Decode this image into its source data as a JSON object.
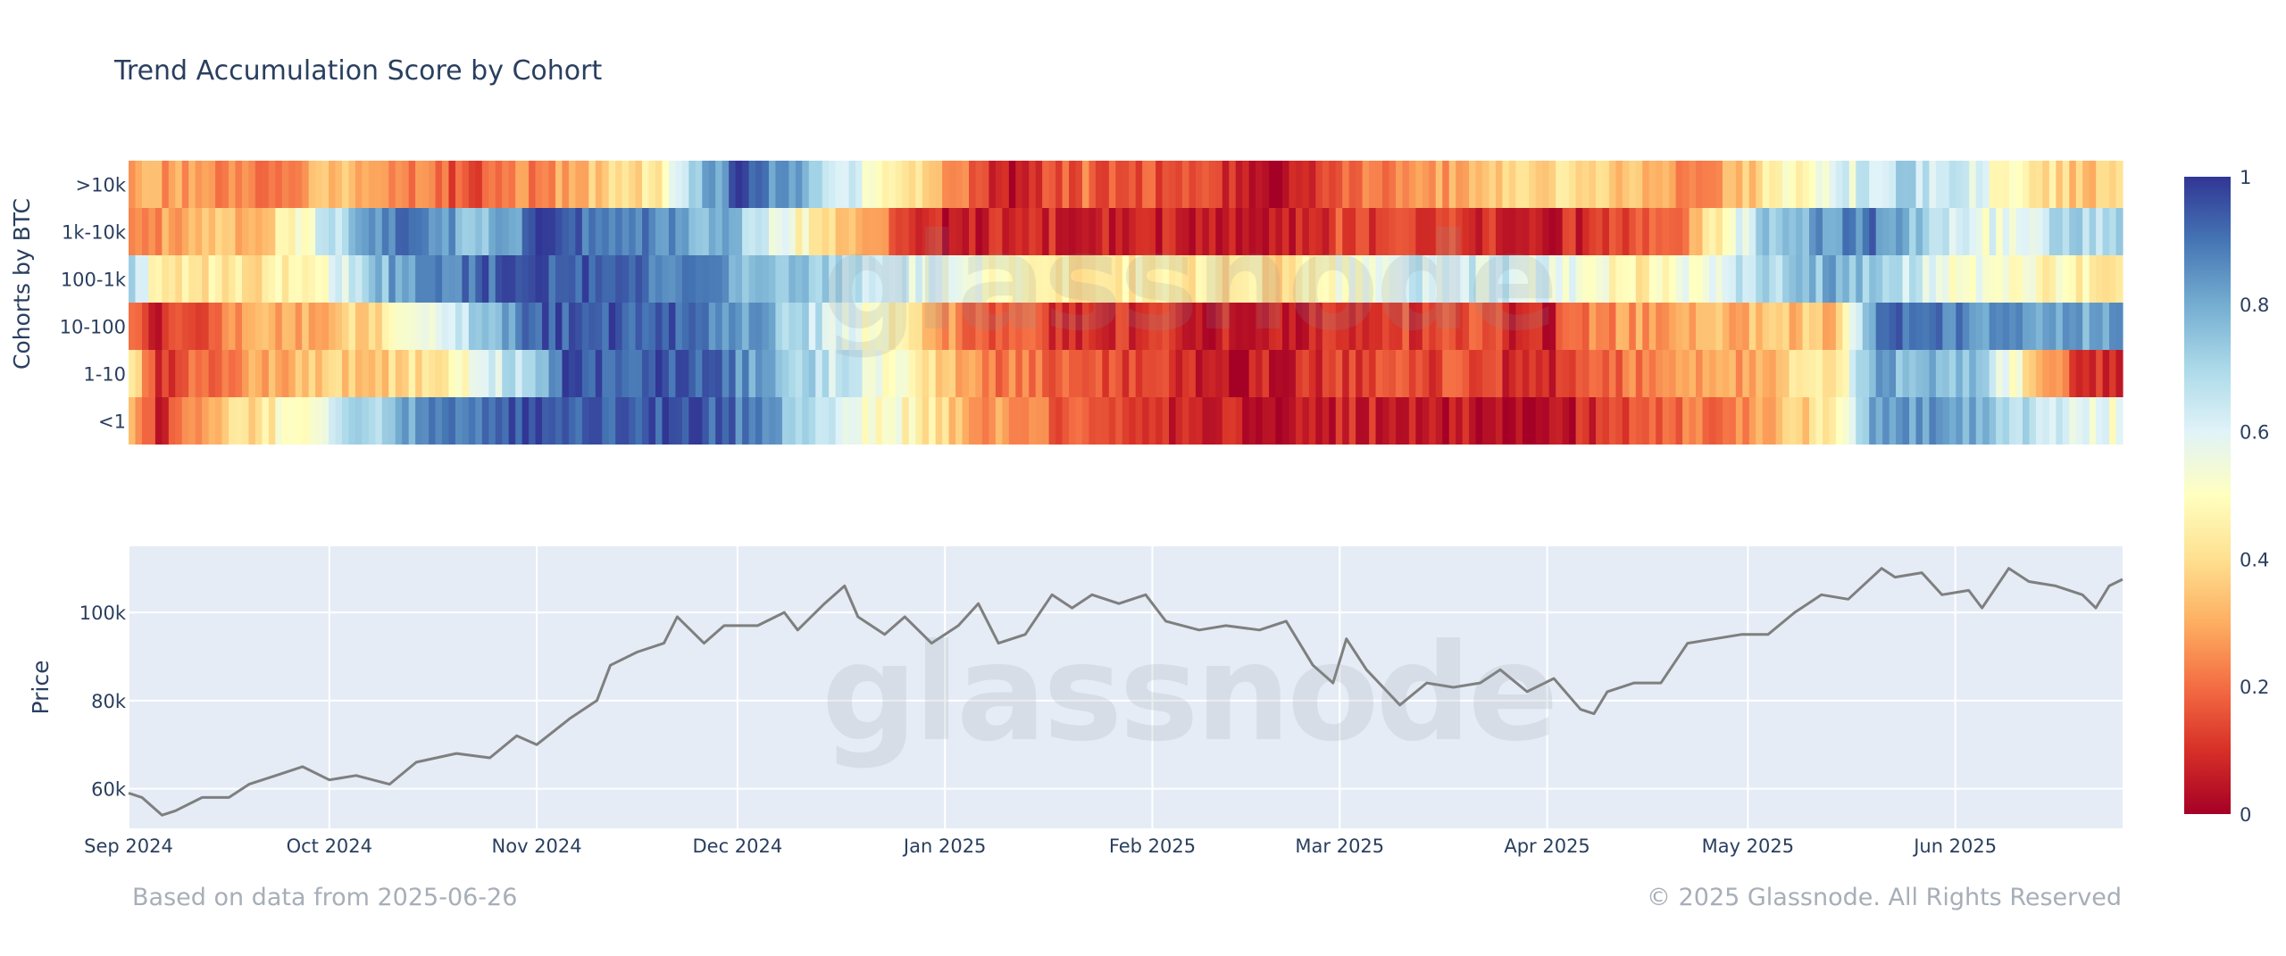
{
  "chart_data": [
    {
      "type": "heatmap",
      "title": "Trend Accumulation Score by Cohort",
      "ylabel": "Cohorts by BTC",
      "rows": [
        ">10k",
        "1k-10k",
        "100-1k",
        "10-100",
        "1-10",
        "<1"
      ],
      "x_range": [
        "2024-09-01",
        "2025-06-26"
      ],
      "colorscale": {
        "min": 0,
        "max": 1,
        "ticks": [
          "0",
          "0.2",
          "0.4",
          "0.6",
          "0.8",
          "1"
        ],
        "colors": [
          "#a50026",
          "#d73027",
          "#f46d43",
          "#fdae61",
          "#fee090",
          "#ffffbf",
          "#e0f3f8",
          "#abd9e9",
          "#74add1",
          "#4575b4",
          "#313695"
        ]
      },
      "segments": [
        {
          "row": ">10k",
          "values": [
            [
              "2024-09-01",
              0.3
            ],
            [
              "2024-09-20",
              0.2
            ],
            [
              "2024-10-01",
              0.35
            ],
            [
              "2024-10-20",
              0.15
            ],
            [
              "2024-11-01",
              0.25
            ],
            [
              "2024-11-20",
              0.45
            ],
            [
              "2024-11-25",
              0.75
            ],
            [
              "2024-12-01",
              0.95
            ],
            [
              "2024-12-17",
              0.65
            ],
            [
              "2024-12-29",
              0.35
            ],
            [
              "2025-01-10",
              0.05
            ],
            [
              "2025-01-21",
              0.2
            ],
            [
              "2025-02-10",
              0.12
            ],
            [
              "2025-02-20",
              0.02
            ],
            [
              "2025-03-01",
              0.2
            ],
            [
              "2025-03-20",
              0.3
            ],
            [
              "2025-04-01",
              0.4
            ],
            [
              "2025-04-15",
              0.35
            ],
            [
              "2025-04-25",
              0.2
            ],
            [
              "2025-05-05",
              0.45
            ],
            [
              "2025-05-25",
              0.7
            ],
            [
              "2025-06-10",
              0.5
            ],
            [
              "2025-06-20",
              0.35
            ]
          ]
        },
        {
          "row": "1k-10k",
          "values": [
            [
              "2024-09-01",
              0.25
            ],
            [
              "2024-09-20",
              0.35
            ],
            [
              "2024-10-01",
              0.65
            ],
            [
              "2024-10-10",
              0.9
            ],
            [
              "2024-10-25",
              0.75
            ],
            [
              "2024-11-01",
              0.95
            ],
            [
              "2024-11-20",
              0.85
            ],
            [
              "2024-12-01",
              0.75
            ],
            [
              "2024-12-10",
              0.5
            ],
            [
              "2024-12-20",
              0.3
            ],
            [
              "2025-01-01",
              0.05
            ],
            [
              "2025-01-15",
              0.1
            ],
            [
              "2025-02-01",
              0.08
            ],
            [
              "2025-02-20",
              0.02
            ],
            [
              "2025-03-01",
              0.15
            ],
            [
              "2025-03-20",
              0.1
            ],
            [
              "2025-04-01",
              0.05
            ],
            [
              "2025-04-20",
              0.2
            ],
            [
              "2025-04-28",
              0.5
            ],
            [
              "2025-05-05",
              0.75
            ],
            [
              "2025-05-20",
              0.9
            ],
            [
              "2025-06-05",
              0.55
            ],
            [
              "2025-06-20",
              0.7
            ]
          ]
        },
        {
          "row": "100-1k",
          "values": [
            [
              "2024-09-01",
              0.7
            ],
            [
              "2024-09-05",
              0.45
            ],
            [
              "2024-09-20",
              0.4
            ],
            [
              "2024-10-01",
              0.55
            ],
            [
              "2024-10-10",
              0.8
            ],
            [
              "2024-10-20",
              0.9
            ],
            [
              "2024-11-01",
              0.95
            ],
            [
              "2024-11-20",
              0.9
            ],
            [
              "2024-12-01",
              0.8
            ],
            [
              "2024-12-15",
              0.7
            ],
            [
              "2025-01-01",
              0.55
            ],
            [
              "2025-01-15",
              0.45
            ],
            [
              "2025-02-01",
              0.45
            ],
            [
              "2025-02-20",
              0.4
            ],
            [
              "2025-03-01",
              0.5
            ],
            [
              "2025-03-15",
              0.65
            ],
            [
              "2025-04-01",
              0.6
            ],
            [
              "2025-04-15",
              0.45
            ],
            [
              "2025-05-01",
              0.65
            ],
            [
              "2025-05-15",
              0.8
            ],
            [
              "2025-06-01",
              0.55
            ],
            [
              "2025-06-20",
              0.45
            ]
          ]
        },
        {
          "row": "10-100",
          "values": [
            [
              "2024-09-01",
              0.2
            ],
            [
              "2024-09-05",
              0.05
            ],
            [
              "2024-09-15",
              0.25
            ],
            [
              "2024-10-01",
              0.35
            ],
            [
              "2024-10-15",
              0.5
            ],
            [
              "2024-10-25",
              0.75
            ],
            [
              "2024-11-01",
              0.95
            ],
            [
              "2024-11-20",
              0.95
            ],
            [
              "2024-12-01",
              0.85
            ],
            [
              "2024-12-10",
              0.7
            ],
            [
              "2024-12-22",
              0.5
            ],
            [
              "2025-01-05",
              0.2
            ],
            [
              "2025-01-20",
              0.1
            ],
            [
              "2025-02-01",
              0.1
            ],
            [
              "2025-02-15",
              0.05
            ],
            [
              "2025-03-01",
              0.1
            ],
            [
              "2025-03-20",
              0.15
            ],
            [
              "2025-04-01",
              0.05
            ],
            [
              "2025-04-08",
              0.25
            ],
            [
              "2025-04-20",
              0.3
            ],
            [
              "2025-05-15",
              0.35
            ],
            [
              "2025-05-22",
              0.95
            ],
            [
              "2025-06-05",
              0.85
            ],
            [
              "2025-06-20",
              0.8
            ]
          ]
        },
        {
          "row": "1-10",
          "values": [
            [
              "2024-09-01",
              0.45
            ],
            [
              "2024-09-05",
              0.1
            ],
            [
              "2024-09-20",
              0.3
            ],
            [
              "2024-10-01",
              0.35
            ],
            [
              "2024-10-15",
              0.4
            ],
            [
              "2024-11-01",
              0.75
            ],
            [
              "2024-11-05",
              0.95
            ],
            [
              "2024-11-25",
              0.95
            ],
            [
              "2024-12-01",
              0.85
            ],
            [
              "2024-12-15",
              0.65
            ],
            [
              "2024-12-25",
              0.5
            ],
            [
              "2025-01-05",
              0.25
            ],
            [
              "2025-01-20",
              0.15
            ],
            [
              "2025-02-01",
              0.1
            ],
            [
              "2025-02-15",
              0.05
            ],
            [
              "2025-03-01",
              0.12
            ],
            [
              "2025-03-20",
              0.15
            ],
            [
              "2025-04-01",
              0.05
            ],
            [
              "2025-04-10",
              0.2
            ],
            [
              "2025-05-01",
              0.3
            ],
            [
              "2025-05-15",
              0.45
            ],
            [
              "2025-05-20",
              0.8
            ],
            [
              "2025-06-05",
              0.75
            ],
            [
              "2025-06-20",
              0.1
            ]
          ]
        },
        {
          "row": "<1",
          "values": [
            [
              "2024-09-01",
              0.3
            ],
            [
              "2024-09-05",
              0.1
            ],
            [
              "2024-09-15",
              0.35
            ],
            [
              "2024-10-01",
              0.6
            ],
            [
              "2024-10-15",
              0.85
            ],
            [
              "2024-11-01",
              0.95
            ],
            [
              "2024-11-25",
              0.95
            ],
            [
              "2024-12-05",
              0.85
            ],
            [
              "2024-12-15",
              0.6
            ],
            [
              "2024-12-25",
              0.5
            ],
            [
              "2025-01-05",
              0.3
            ],
            [
              "2025-01-20",
              0.15
            ],
            [
              "2025-02-01",
              0.1
            ],
            [
              "2025-02-15",
              0.05
            ],
            [
              "2025-03-01",
              0.08
            ],
            [
              "2025-03-20",
              0.05
            ],
            [
              "2025-04-01",
              0.02
            ],
            [
              "2025-04-15",
              0.15
            ],
            [
              "2025-05-01",
              0.25
            ],
            [
              "2025-05-15",
              0.45
            ],
            [
              "2025-05-20",
              0.85
            ],
            [
              "2025-06-05",
              0.8
            ],
            [
              "2025-06-20",
              0.55
            ]
          ]
        }
      ]
    },
    {
      "type": "line",
      "ylabel": "Price",
      "yticks": [
        "60k",
        "80k",
        "100k"
      ],
      "ytick_values": [
        60000,
        80000,
        100000
      ],
      "ylim": [
        51000,
        115000
      ],
      "xticks": [
        "Sep 2024",
        "Oct 2024",
        "Nov 2024",
        "Dec 2024",
        "Jan 2025",
        "Feb 2025",
        "Mar 2025",
        "Apr 2025",
        "May 2025",
        "Jun 2025"
      ],
      "xtick_dates": [
        "2024-09-01",
        "2024-10-01",
        "2024-11-01",
        "2024-12-01",
        "2025-01-01",
        "2025-02-01",
        "2025-03-01",
        "2025-04-01",
        "2025-05-01",
        "2025-06-01"
      ],
      "series": [
        {
          "color": "#7f7f7f",
          "points": [
            [
              "2024-09-01",
              59000
            ],
            [
              "2024-09-03",
              58000
            ],
            [
              "2024-09-06",
              54000
            ],
            [
              "2024-09-08",
              55000
            ],
            [
              "2024-09-12",
              58000
            ],
            [
              "2024-09-16",
              58000
            ],
            [
              "2024-09-19",
              61000
            ],
            [
              "2024-09-23",
              63000
            ],
            [
              "2024-09-27",
              65000
            ],
            [
              "2024-10-01",
              62000
            ],
            [
              "2024-10-05",
              63000
            ],
            [
              "2024-10-10",
              61000
            ],
            [
              "2024-10-14",
              66000
            ],
            [
              "2024-10-20",
              68000
            ],
            [
              "2024-10-25",
              67000
            ],
            [
              "2024-10-29",
              72000
            ],
            [
              "2024-11-01",
              70000
            ],
            [
              "2024-11-06",
              76000
            ],
            [
              "2024-11-10",
              80000
            ],
            [
              "2024-11-12",
              88000
            ],
            [
              "2024-11-16",
              91000
            ],
            [
              "2024-11-20",
              93000
            ],
            [
              "2024-11-22",
              99000
            ],
            [
              "2024-11-26",
              93000
            ],
            [
              "2024-11-29",
              97000
            ],
            [
              "2024-12-04",
              97000
            ],
            [
              "2024-12-08",
              100000
            ],
            [
              "2024-12-10",
              96000
            ],
            [
              "2024-12-14",
              102000
            ],
            [
              "2024-12-17",
              106000
            ],
            [
              "2024-12-19",
              99000
            ],
            [
              "2024-12-23",
              95000
            ],
            [
              "2024-12-26",
              99000
            ],
            [
              "2024-12-30",
              93000
            ],
            [
              "2025-01-03",
              97000
            ],
            [
              "2025-01-06",
              102000
            ],
            [
              "2025-01-09",
              93000
            ],
            [
              "2025-01-13",
              95000
            ],
            [
              "2025-01-17",
              104000
            ],
            [
              "2025-01-20",
              101000
            ],
            [
              "2025-01-23",
              104000
            ],
            [
              "2025-01-27",
              102000
            ],
            [
              "2025-01-31",
              104000
            ],
            [
              "2025-02-03",
              98000
            ],
            [
              "2025-02-08",
              96000
            ],
            [
              "2025-02-12",
              97000
            ],
            [
              "2025-02-17",
              96000
            ],
            [
              "2025-02-21",
              98000
            ],
            [
              "2025-02-25",
              88000
            ],
            [
              "2025-02-28",
              84000
            ],
            [
              "2025-03-02",
              94000
            ],
            [
              "2025-03-05",
              87000
            ],
            [
              "2025-03-10",
              79000
            ],
            [
              "2025-03-14",
              84000
            ],
            [
              "2025-03-18",
              83000
            ],
            [
              "2025-03-22",
              84000
            ],
            [
              "2025-03-25",
              87000
            ],
            [
              "2025-03-29",
              82000
            ],
            [
              "2025-04-02",
              85000
            ],
            [
              "2025-04-06",
              78000
            ],
            [
              "2025-04-08",
              77000
            ],
            [
              "2025-04-10",
              82000
            ],
            [
              "2025-04-14",
              84000
            ],
            [
              "2025-04-18",
              84000
            ],
            [
              "2025-04-22",
              93000
            ],
            [
              "2025-04-26",
              94000
            ],
            [
              "2025-04-30",
              95000
            ],
            [
              "2025-05-04",
              95000
            ],
            [
              "2025-05-08",
              100000
            ],
            [
              "2025-05-12",
              104000
            ],
            [
              "2025-05-16",
              103000
            ],
            [
              "2025-05-21",
              110000
            ],
            [
              "2025-05-23",
              108000
            ],
            [
              "2025-05-27",
              109000
            ],
            [
              "2025-05-30",
              104000
            ],
            [
              "2025-06-03",
              105000
            ],
            [
              "2025-06-05",
              101000
            ],
            [
              "2025-06-09",
              110000
            ],
            [
              "2025-06-12",
              107000
            ],
            [
              "2025-06-16",
              106000
            ],
            [
              "2025-06-20",
              104000
            ],
            [
              "2025-06-22",
              101000
            ],
            [
              "2025-06-24",
              106000
            ],
            [
              "2025-06-26",
              107500
            ]
          ]
        }
      ]
    }
  ],
  "footer": {
    "left": "Based on data from 2025-06-26",
    "right": "© 2025 Glassnode. All Rights Reserved"
  },
  "watermark": "glassnode"
}
